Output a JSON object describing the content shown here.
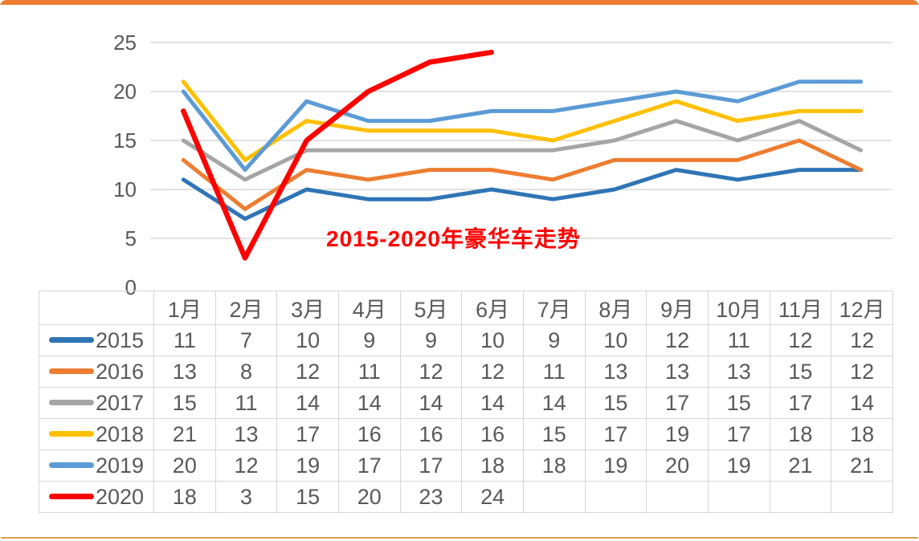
{
  "page": {
    "top_accent_color": "#ED7D31",
    "bottom_accent_color": "#D9A050",
    "background_color": "#FFFFFF"
  },
  "chart_data": {
    "type": "line",
    "title": "2015-2020年豪华车走势",
    "title_color": "#FF0000",
    "categories": [
      "1月",
      "2月",
      "3月",
      "4月",
      "5月",
      "6月",
      "7月",
      "8月",
      "9月",
      "10月",
      "11月",
      "12月"
    ],
    "series": [
      {
        "name": "2015",
        "color": "#2E75B6",
        "values": [
          11,
          7,
          10,
          9,
          9,
          10,
          9,
          10,
          12,
          11,
          12,
          12
        ]
      },
      {
        "name": "2016",
        "color": "#ED7D31",
        "values": [
          13,
          8,
          12,
          11,
          12,
          12,
          11,
          13,
          13,
          13,
          15,
          12
        ]
      },
      {
        "name": "2017",
        "color": "#A5A5A5",
        "values": [
          15,
          11,
          14,
          14,
          14,
          14,
          14,
          15,
          17,
          15,
          17,
          14
        ]
      },
      {
        "name": "2018",
        "color": "#FFC000",
        "values": [
          21,
          13,
          17,
          16,
          16,
          16,
          15,
          17,
          19,
          17,
          18,
          18
        ]
      },
      {
        "name": "2019",
        "color": "#5B9BD5",
        "values": [
          20,
          12,
          19,
          17,
          17,
          18,
          18,
          19,
          20,
          19,
          21,
          21
        ]
      },
      {
        "name": "2020",
        "color": "#FF0000",
        "values": [
          18,
          3,
          15,
          20,
          23,
          24
        ]
      }
    ],
    "ylim": [
      0,
      25
    ],
    "yticks": [
      0,
      5,
      10,
      15,
      20,
      25
    ],
    "grid": true,
    "gridline_color": "#D9D9D9",
    "axis_label_color": "#595959",
    "legend_position": "data-table-left-column",
    "line_width": 5,
    "highlight_series": "2020",
    "highlight_line_width": 6.5
  },
  "table": {
    "border_color": "#D6D6DB",
    "text_color": "#595959",
    "empty_cell": ""
  }
}
